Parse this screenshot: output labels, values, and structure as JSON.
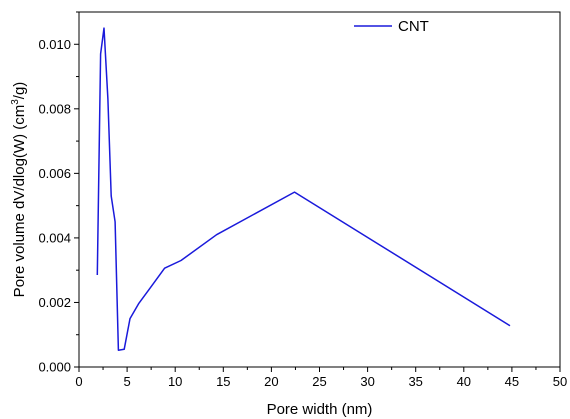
{
  "chart_data": {
    "type": "line",
    "title": "",
    "xlabel": "Pore width (nm)",
    "ylabel": {
      "prefix": "Pore volume dV/dlog(W) (cm",
      "superscript": "3",
      "suffix": "/g)"
    },
    "xlim": [
      0,
      50
    ],
    "ylim": [
      0,
      0.011
    ],
    "xticks": [
      0,
      5,
      10,
      15,
      20,
      25,
      30,
      35,
      40,
      45,
      50
    ],
    "xtick_labels": [
      "0",
      "5",
      "10",
      "15",
      "20",
      "25",
      "30",
      "35",
      "40",
      "45",
      "50"
    ],
    "yticks": [
      0,
      0.002,
      0.004,
      0.006,
      0.008,
      0.01
    ],
    "ytick_labels": [
      "0.000",
      "0.002",
      "0.004",
      "0.006",
      "0.008",
      "0.010"
    ],
    "grid": false,
    "legend_position": "top-right",
    "series": [
      {
        "name": "CNT",
        "color": "#1a1adb",
        "x": [
          1.9,
          2.25,
          2.6,
          3.0,
          3.35,
          3.75,
          4.1,
          4.7,
          5.3,
          6.2,
          7.4,
          8.9,
          10.6,
          14.3,
          22.4,
          44.8
        ],
        "y": [
          0.00285,
          0.0097,
          0.0105,
          0.0083,
          0.0053,
          0.0045,
          0.00052,
          0.00055,
          0.0015,
          0.00196,
          0.00245,
          0.00306,
          0.0033,
          0.0041,
          0.00542,
          0.00128
        ]
      }
    ]
  }
}
